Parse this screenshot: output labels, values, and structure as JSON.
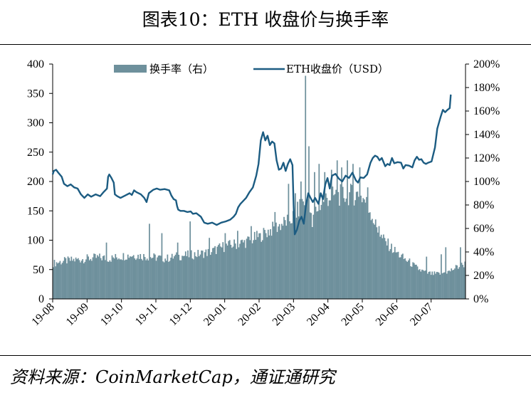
{
  "title": "图表10：ETH 收盘价与换手率",
  "source": "资料来源：CoinMarketCap，通证通研究",
  "chart_data": {
    "type": "bar+line",
    "left_axis": {
      "ticks": [
        "0",
        "50",
        "100",
        "150",
        "200",
        "250",
        "300",
        "350",
        "400"
      ],
      "range": [
        0,
        400
      ]
    },
    "right_axis": {
      "ticks": [
        "0%",
        "20%",
        "40%",
        "60%",
        "80%",
        "100%",
        "120%",
        "140%",
        "160%",
        "180%",
        "200%"
      ],
      "range": [
        0,
        200
      ],
      "unit": "%"
    },
    "x_ticks": [
      "19-08",
      "19-09",
      "19-10",
      "19-11",
      "19-12",
      "20-01",
      "20-02",
      "20-03",
      "20-04",
      "20-05",
      "20-06",
      "20-07"
    ],
    "legend": {
      "turnover_label": "换手率（右）",
      "price_label": "ETH收盘价（USD）",
      "position": "top"
    },
    "colors": {
      "turnover": "#6e909c",
      "price": "#1c5c82"
    },
    "series": [
      {
        "name": "换手率（右）",
        "axis": "right",
        "unit": "%",
        "keypoints": [
          [
            0,
            30
          ],
          [
            10,
            32
          ],
          [
            20,
            33
          ],
          [
            30,
            34
          ],
          [
            40,
            35
          ],
          [
            50,
            34
          ],
          [
            60,
            36
          ],
          [
            70,
            37
          ],
          [
            80,
            36
          ],
          [
            90,
            35
          ],
          [
            100,
            34
          ],
          [
            110,
            36
          ],
          [
            120,
            37
          ],
          [
            130,
            38
          ],
          [
            140,
            40
          ],
          [
            150,
            44
          ],
          [
            160,
            46
          ],
          [
            170,
            48
          ],
          [
            180,
            52
          ],
          [
            190,
            57
          ],
          [
            200,
            62
          ],
          [
            210,
            67
          ],
          [
            216,
            74
          ],
          [
            220,
            82
          ],
          [
            225,
            84
          ],
          [
            229,
            62
          ],
          [
            232,
            74
          ],
          [
            240,
            85
          ],
          [
            250,
            87
          ],
          [
            260,
            88
          ],
          [
            270,
            88
          ],
          [
            275,
            84
          ],
          [
            280,
            75
          ],
          [
            285,
            62
          ],
          [
            290,
            52
          ],
          [
            295,
            47
          ],
          [
            300,
            42
          ],
          [
            305,
            38
          ],
          [
            310,
            34
          ],
          [
            315,
            31
          ],
          [
            320,
            27
          ],
          [
            325,
            24
          ],
          [
            330,
            22
          ],
          [
            335,
            21
          ],
          [
            340,
            21
          ],
          [
            345,
            22
          ],
          [
            350,
            23
          ],
          [
            355,
            26
          ],
          [
            360,
            28
          ],
          [
            365,
            30
          ]
        ],
        "spikes": [
          [
            47,
            48
          ],
          [
            85,
            64
          ],
          [
            96,
            56
          ],
          [
            110,
            48
          ],
          [
            121,
            66
          ],
          [
            138,
            52
          ],
          [
            152,
            56
          ],
          [
            163,
            58
          ],
          [
            175,
            62
          ],
          [
            183,
            56
          ],
          [
            196,
            74
          ],
          [
            208,
            98
          ],
          [
            214,
            90
          ],
          [
            219,
            100
          ],
          [
            223,
            190
          ],
          [
            226,
            130
          ],
          [
            231,
            108
          ],
          [
            235,
            115
          ],
          [
            240,
            108
          ],
          [
            246,
            110
          ],
          [
            251,
            118
          ],
          [
            255,
            112
          ],
          [
            260,
            118
          ],
          [
            265,
            115
          ],
          [
            271,
            112
          ],
          [
            278,
            95
          ],
          [
            288,
            62
          ],
          [
            330,
            36
          ],
          [
            343,
            38
          ],
          [
            347,
            44
          ],
          [
            360,
            44
          ]
        ]
      },
      {
        "name": "ETH收盘价（USD）",
        "axis": "left",
        "unit": "USD",
        "keypoints": [
          [
            0,
            212
          ],
          [
            1,
            218
          ],
          [
            3,
            220
          ],
          [
            5,
            215
          ],
          [
            8,
            208
          ],
          [
            10,
            196
          ],
          [
            13,
            192
          ],
          [
            16,
            195
          ],
          [
            19,
            190
          ],
          [
            22,
            188
          ],
          [
            25,
            178
          ],
          [
            28,
            172
          ],
          [
            31,
            178
          ],
          [
            34,
            174
          ],
          [
            38,
            178
          ],
          [
            42,
            175
          ],
          [
            45,
            182
          ],
          [
            48,
            188
          ],
          [
            49,
            208
          ],
          [
            50,
            212
          ],
          [
            52,
            206
          ],
          [
            54,
            198
          ],
          [
            55,
            178
          ],
          [
            57,
            175
          ],
          [
            60,
            172
          ],
          [
            64,
            176
          ],
          [
            68,
            180
          ],
          [
            70,
            177
          ],
          [
            72,
            185
          ],
          [
            74,
            182
          ],
          [
            78,
            178
          ],
          [
            81,
            172
          ],
          [
            83,
            165
          ],
          [
            85,
            180
          ],
          [
            89,
            186
          ],
          [
            92,
            188
          ],
          [
            95,
            186
          ],
          [
            99,
            187
          ],
          [
            103,
            185
          ],
          [
            105,
            176
          ],
          [
            107,
            170
          ],
          [
            109,
            168
          ],
          [
            110,
            158
          ],
          [
            111,
            152
          ],
          [
            113,
            150
          ],
          [
            116,
            150
          ],
          [
            119,
            148
          ],
          [
            122,
            149
          ],
          [
            124,
            145
          ],
          [
            127,
            146
          ],
          [
            131,
            140
          ],
          [
            134,
            130
          ],
          [
            137,
            128
          ],
          [
            141,
            130
          ],
          [
            145,
            126
          ],
          [
            149,
            130
          ],
          [
            153,
            132
          ],
          [
            157,
            135
          ],
          [
            160,
            140
          ],
          [
            162,
            145
          ],
          [
            164,
            156
          ],
          [
            166,
            162
          ],
          [
            168,
            166
          ],
          [
            171,
            172
          ],
          [
            174,
            182
          ],
          [
            177,
            190
          ],
          [
            180,
            210
          ],
          [
            182,
            230
          ],
          [
            184,
            270
          ],
          [
            186,
            284
          ],
          [
            188,
            270
          ],
          [
            190,
            278
          ],
          [
            192,
            262
          ],
          [
            194,
            268
          ],
          [
            196,
            265
          ],
          [
            198,
            236
          ],
          [
            200,
            220
          ],
          [
            202,
            222
          ],
          [
            204,
            232
          ],
          [
            206,
            218
          ],
          [
            208,
            230
          ],
          [
            210,
            238
          ],
          [
            212,
            228
          ],
          [
            213,
            160
          ],
          [
            214,
            110
          ],
          [
            216,
            118
          ],
          [
            218,
            133
          ],
          [
            220,
            140
          ],
          [
            222,
            128
          ],
          [
            224,
            160
          ],
          [
            226,
            180
          ],
          [
            228,
            172
          ],
          [
            230,
            165
          ],
          [
            232,
            172
          ],
          [
            235,
            162
          ],
          [
            237,
            180
          ],
          [
            239,
            170
          ],
          [
            241,
            195
          ],
          [
            243,
            206
          ],
          [
            245,
            188
          ],
          [
            247,
            210
          ],
          [
            250,
            213
          ],
          [
            253,
            205
          ],
          [
            256,
            200
          ],
          [
            259,
            210
          ],
          [
            262,
            206
          ],
          [
            265,
            215
          ],
          [
            268,
            202
          ],
          [
            270,
            198
          ],
          [
            272,
            207
          ],
          [
            275,
            206
          ],
          [
            278,
            212
          ],
          [
            281,
            232
          ],
          [
            283,
            240
          ],
          [
            285,
            244
          ],
          [
            287,
            242
          ],
          [
            289,
            236
          ],
          [
            291,
            240
          ],
          [
            294,
            226
          ],
          [
            296,
            230
          ],
          [
            298,
            228
          ],
          [
            300,
            240
          ],
          [
            302,
            231
          ],
          [
            305,
            233
          ],
          [
            308,
            232
          ],
          [
            310,
            222
          ],
          [
            312,
            228
          ],
          [
            315,
            227
          ],
          [
            318,
            224
          ],
          [
            320,
            236
          ],
          [
            322,
            242
          ],
          [
            324,
            237
          ],
          [
            326,
            238
          ],
          [
            328,
            232
          ],
          [
            330,
            230
          ],
          [
            332,
            232
          ],
          [
            335,
            234
          ],
          [
            338,
            258
          ],
          [
            340,
            290
          ],
          [
            343,
            310
          ],
          [
            345,
            322
          ],
          [
            347,
            318
          ],
          [
            349,
            322
          ],
          [
            351,
            325
          ],
          [
            352,
            348
          ]
        ]
      }
    ]
  }
}
